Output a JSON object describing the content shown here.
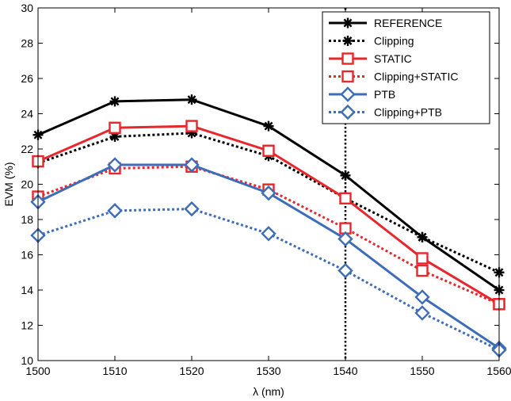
{
  "chart_data": {
    "type": "line",
    "title": "",
    "xlabel": "λ (nm)",
    "ylabel": "EVM (%)",
    "xlim": [
      1500,
      1560
    ],
    "ylim": [
      10,
      30
    ],
    "xticks": [
      1500,
      1510,
      1520,
      1530,
      1540,
      1550,
      1560
    ],
    "yticks": [
      10,
      12,
      14,
      16,
      18,
      20,
      22,
      24,
      26,
      28,
      30
    ],
    "grid": false,
    "legend_position": "top-right",
    "x": [
      1500,
      1510,
      1520,
      1530,
      1540,
      1550,
      1560
    ],
    "vertical_line_x": 1540,
    "series": [
      {
        "name": "REFERENCE",
        "color": "#000000",
        "dash": "solid",
        "marker": "asterisk",
        "values": [
          22.8,
          24.7,
          24.8,
          23.3,
          20.5,
          17.0,
          14.0
        ]
      },
      {
        "name": "Clipping",
        "color": "#000000",
        "dash": "dotted",
        "marker": "asterisk",
        "values": [
          21.2,
          22.7,
          22.9,
          21.6,
          19.2,
          17.0,
          15.0
        ]
      },
      {
        "name": "STATIC",
        "color": "#e8262b",
        "dash": "solid",
        "marker": "square",
        "values": [
          21.3,
          23.2,
          23.3,
          21.9,
          19.2,
          15.8,
          13.2
        ]
      },
      {
        "name": "Clipping+STATIC",
        "color": "#e8262b",
        "dash": "dotted",
        "marker": "square",
        "values": [
          19.3,
          20.9,
          21.0,
          19.7,
          17.5,
          15.1,
          13.2
        ]
      },
      {
        "name": "PTB",
        "color": "#3d6cb8",
        "dash": "solid",
        "marker": "diamond",
        "values": [
          19.0,
          21.1,
          21.1,
          19.5,
          16.9,
          13.6,
          10.7
        ]
      },
      {
        "name": "Clipping+PTB",
        "color": "#3d6cb8",
        "dash": "dotted",
        "marker": "diamond",
        "values": [
          17.1,
          18.5,
          18.6,
          17.2,
          15.1,
          12.7,
          10.6
        ]
      }
    ]
  }
}
